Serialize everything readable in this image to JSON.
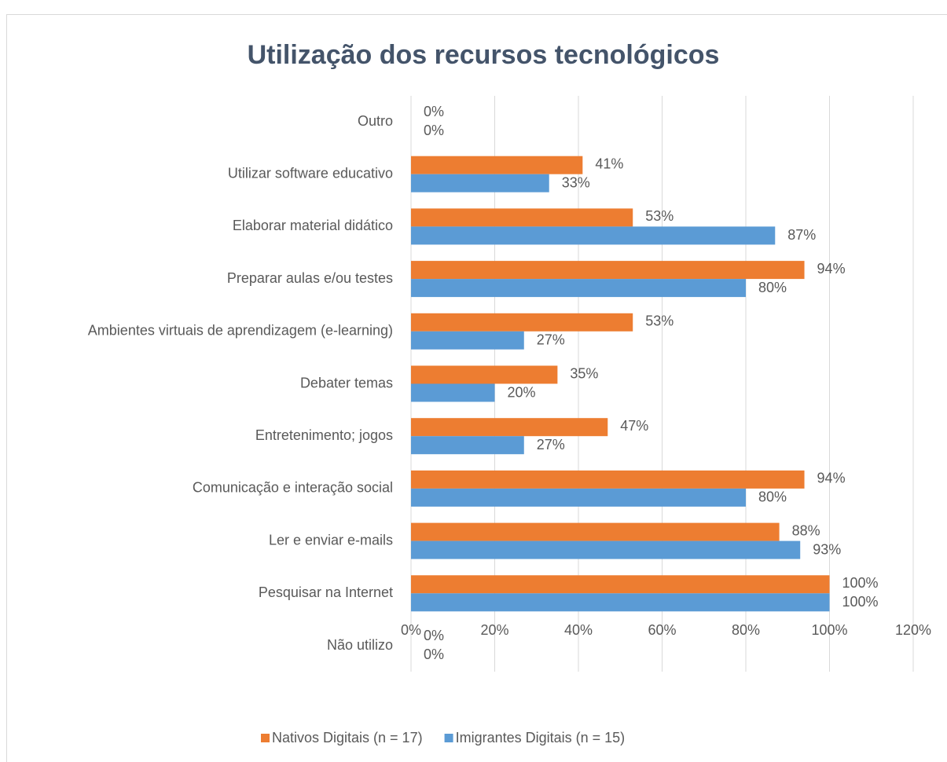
{
  "chart_data": {
    "type": "bar",
    "orientation": "horizontal",
    "title": "Utilização dos recursos tecnológicos",
    "categories": [
      "Outro",
      "Utilizar software educativo",
      "Elaborar material didático",
      "Preparar aulas e/ou testes",
      "Ambientes virtuais de aprendizagem (e-learning)",
      "Debater temas",
      "Entretenimento; jogos",
      "Comunicação e interação social",
      "Ler e enviar e-mails ",
      "Pesquisar na Internet",
      "Não utilizo"
    ],
    "series": [
      {
        "name": "Nativos Digitais (n = 17)",
        "color": "#ed7d31",
        "values": [
          0,
          41,
          53,
          94,
          53,
          35,
          47,
          94,
          88,
          100,
          0
        ],
        "value_labels": [
          "0%",
          "41%",
          "53%",
          "94%",
          "53%",
          "35%",
          "47%",
          "94%",
          "88%",
          "100%",
          "0%"
        ]
      },
      {
        "name": "Imigrantes Digitais (n = 15)",
        "color": "#5b9bd5",
        "values": [
          0,
          33,
          87,
          80,
          27,
          20,
          27,
          80,
          93,
          100,
          0
        ],
        "value_labels": [
          "0%",
          "33%",
          "87%",
          "80%",
          "27%",
          "20%",
          "27%",
          "80%",
          "93%",
          "100%",
          "0%"
        ]
      }
    ],
    "xlim": [
      0,
      120
    ],
    "xticks": [
      {
        "value": 0,
        "label": "0%"
      },
      {
        "value": 20,
        "label": "20%"
      },
      {
        "value": 40,
        "label": "40%"
      },
      {
        "value": 60,
        "label": "60%"
      },
      {
        "value": 80,
        "label": "80%"
      },
      {
        "value": 100,
        "label": "100%"
      },
      {
        "value": 120,
        "label": "120%"
      }
    ],
    "grid": true,
    "legend": "bottom"
  }
}
